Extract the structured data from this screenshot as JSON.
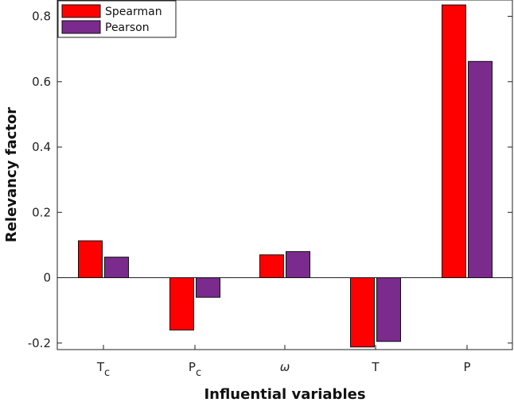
{
  "chart_data": {
    "type": "bar",
    "title": "",
    "xlabel": "Influential variables",
    "ylabel": "Relevancy factor",
    "categories": [
      {
        "base": "T",
        "sub": "c"
      },
      {
        "base": "P",
        "sub": "c"
      },
      {
        "base": "ω",
        "sub": ""
      },
      {
        "base": "T",
        "sub": ""
      },
      {
        "base": "P",
        "sub": ""
      }
    ],
    "series": [
      {
        "name": "Spearman",
        "color": "#ff0000",
        "values": [
          0.113,
          -0.16,
          0.07,
          -0.212,
          0.835
        ]
      },
      {
        "name": "Pearson",
        "color": "#7b2a8d",
        "values": [
          0.063,
          -0.06,
          0.08,
          -0.195,
          0.662
        ]
      }
    ],
    "ylim": [
      -0.22,
      0.85
    ],
    "yticks": [
      -0.2,
      0,
      0.2,
      0.4,
      0.6,
      0.8
    ],
    "ytick_labels": [
      "-0.2",
      "0",
      "0.2",
      "0.4",
      "0.6",
      "0.8"
    ],
    "grid": false,
    "legend_position": "top-left"
  }
}
